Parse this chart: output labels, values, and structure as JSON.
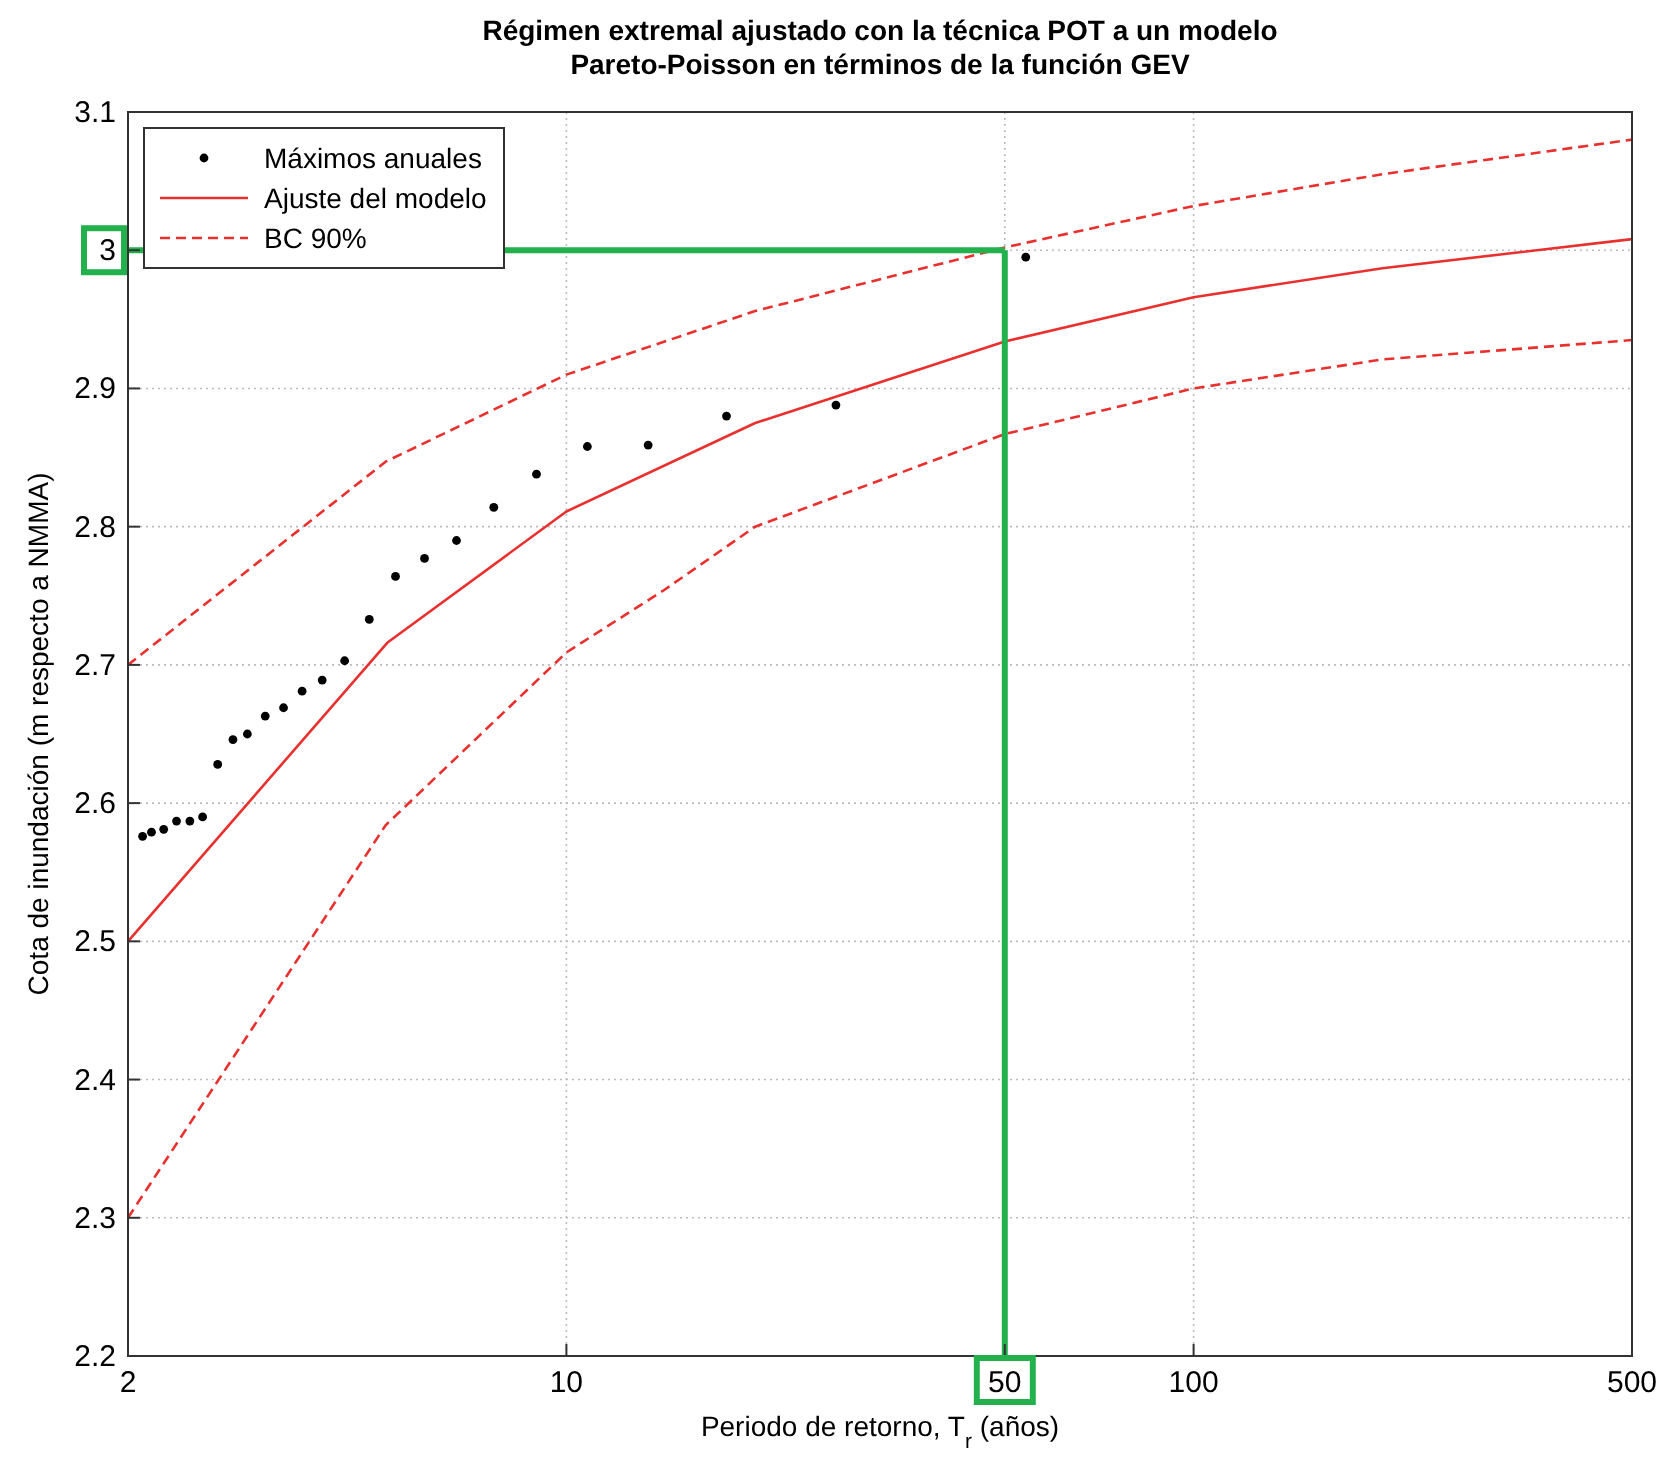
{
  "chart_data": {
    "type": "line",
    "title": "Régimen extremal ajustado con la técnica POT a un modelo\nPareto-Poisson en términos de la función GEV",
    "xlabel": "Periodo de retorno, T$_{r}$ (años)",
    "ylabel": "Cota de inundación (m respecto a NMMA)",
    "log": "x",
    "xlim": [
      2,
      500
    ],
    "xticks": [
      2,
      10,
      50,
      100,
      500
    ],
    "ylim": [
      2.2,
      3.1
    ],
    "yticks": [
      2.2,
      2.3,
      2.4,
      2.5,
      2.6,
      2.7,
      2.8,
      2.9,
      3,
      3.1
    ],
    "grid": true,
    "legend": "top left",
    "ref_lines": [
      {
        "axis": "x",
        "value": 50,
        "color": "#22b14c"
      },
      {
        "axis": "y",
        "value": 3,
        "color": "#22b14c"
      }
    ],
    "series": [
      {
        "name": "Máximos anuales",
        "type": "scatter",
        "marker": "circle",
        "color": "#000000",
        "x": [
          2.11,
          2.18,
          2.28,
          2.39,
          2.51,
          2.63,
          2.78,
          2.94,
          3.1,
          3.31,
          3.54,
          3.79,
          4.08,
          4.43,
          4.85,
          5.34,
          5.94,
          6.68,
          7.66,
          8.96,
          10.8,
          13.5,
          18,
          26.9,
          54
        ],
        "values": [
          2.576,
          2.579,
          2.581,
          2.587,
          2.587,
          2.59,
          2.628,
          2.646,
          2.65,
          2.663,
          2.669,
          2.681,
          2.689,
          2.703,
          2.733,
          2.764,
          2.777,
          2.79,
          2.814,
          2.838,
          2.858,
          2.859,
          2.88,
          2.888,
          2.995
        ]
      },
      {
        "name": "Ajuste del modelo",
        "line_style": "solid",
        "color": "#e8312f",
        "x": [
          2,
          5.18,
          10,
          20,
          50,
          100,
          200,
          500
        ],
        "values": [
          2.5,
          2.716,
          2.811,
          2.875,
          2.934,
          2.966,
          2.987,
          3.008
        ]
      },
      {
        "name": "BC 90%",
        "line_style": "dashed",
        "color": "#e8312f",
        "x": [
          2,
          5.15,
          10,
          20,
          50,
          100,
          200,
          500
        ],
        "values": [
          2.7,
          2.847,
          2.91,
          2.956,
          3.002,
          3.032,
          3.055,
          3.08
        ]
      },
      {
        "line_style": "dashed",
        "color": "#e8312f",
        "x": [
          2,
          5.15,
          10,
          14.3,
          20,
          50,
          100,
          200,
          500
        ],
        "values": [
          2.3,
          2.584,
          2.709,
          2.754,
          2.8,
          2.867,
          2.9,
          2.921,
          2.935
        ]
      }
    ]
  }
}
